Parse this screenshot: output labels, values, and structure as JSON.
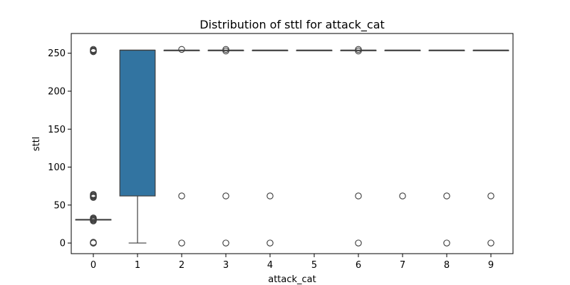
{
  "chart_data": {
    "type": "boxplot",
    "title": "Distribution of sttl for attack_cat",
    "xlabel": "attack_cat",
    "ylabel": "sttl",
    "categories": [
      "0",
      "1",
      "2",
      "3",
      "4",
      "5",
      "6",
      "7",
      "8",
      "9"
    ],
    "ylim": [
      -14,
      276
    ],
    "yticks": [
      0,
      50,
      100,
      150,
      200,
      250
    ],
    "grid": false,
    "legend": "none",
    "box_color": "#3274a1",
    "line_color": "#3f3f3f",
    "boxes": [
      {
        "category": "0",
        "q1": 31,
        "median": 31,
        "q3": 31,
        "whisker_low": 31,
        "whisker_high": 31,
        "outliers": [
          0,
          0,
          1,
          29,
          30,
          31,
          32,
          33,
          60,
          61,
          62,
          63,
          64,
          252,
          253,
          254,
          255
        ]
      },
      {
        "category": "1",
        "q1": 62,
        "median": 254,
        "q3": 254,
        "whisker_low": 0,
        "whisker_high": 254,
        "outliers": []
      },
      {
        "category": "2",
        "q1": 254,
        "median": 254,
        "q3": 254,
        "whisker_low": 254,
        "whisker_high": 254,
        "outliers": [
          0,
          62,
          255
        ]
      },
      {
        "category": "3",
        "q1": 254,
        "median": 254,
        "q3": 254,
        "whisker_low": 254,
        "whisker_high": 254,
        "outliers": [
          0,
          62,
          253,
          255
        ]
      },
      {
        "category": "4",
        "q1": 254,
        "median": 254,
        "q3": 254,
        "whisker_low": 254,
        "whisker_high": 254,
        "outliers": [
          0,
          62
        ]
      },
      {
        "category": "5",
        "q1": 254,
        "median": 254,
        "q3": 254,
        "whisker_low": 254,
        "whisker_high": 254,
        "outliers": []
      },
      {
        "category": "6",
        "q1": 254,
        "median": 254,
        "q3": 254,
        "whisker_low": 254,
        "whisker_high": 254,
        "outliers": [
          0,
          62,
          253,
          255
        ]
      },
      {
        "category": "7",
        "q1": 254,
        "median": 254,
        "q3": 254,
        "whisker_low": 254,
        "whisker_high": 254,
        "outliers": [
          62
        ]
      },
      {
        "category": "8",
        "q1": 254,
        "median": 254,
        "q3": 254,
        "whisker_low": 254,
        "whisker_high": 254,
        "outliers": [
          0,
          62
        ]
      },
      {
        "category": "9",
        "q1": 254,
        "median": 254,
        "q3": 254,
        "whisker_low": 254,
        "whisker_high": 254,
        "outliers": [
          0,
          62
        ]
      }
    ]
  }
}
